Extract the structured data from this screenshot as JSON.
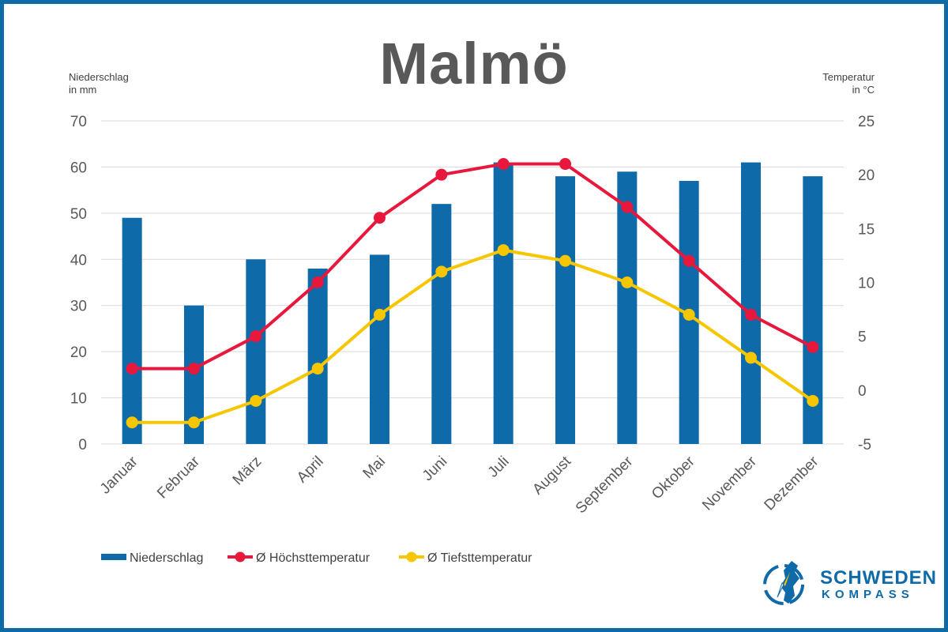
{
  "chart_data": {
    "type": "bar-line-combo",
    "title": "Malmö",
    "categories": [
      "Januar",
      "Februar",
      "März",
      "April",
      "Mai",
      "Juni",
      "Juli",
      "August",
      "September",
      "Oktober",
      "November",
      "Dezember"
    ],
    "series": [
      {
        "name": "Niederschlag",
        "type": "bar",
        "axis": "left",
        "color": "#0e6aa8",
        "values": [
          49,
          30,
          40,
          38,
          41,
          52,
          61,
          58,
          59,
          57,
          61,
          58
        ]
      },
      {
        "name": "Ø Höchsttemperatur",
        "type": "line",
        "axis": "right",
        "color": "#e8173c",
        "values": [
          2,
          2,
          5,
          10,
          16,
          20,
          21,
          21,
          17,
          12,
          7,
          4
        ]
      },
      {
        "name": "Ø Tiefsttemperatur",
        "type": "line",
        "axis": "right",
        "color": "#f6c600",
        "values": [
          -3,
          -3,
          -1,
          2,
          7,
          11,
          13,
          12,
          10,
          7,
          3,
          -1
        ]
      }
    ],
    "y_left": {
      "label_line1": "Niederschlag",
      "label_line2": "in mm",
      "ylim": [
        0,
        70
      ],
      "ticks": [
        0,
        10,
        20,
        30,
        40,
        50,
        60,
        70
      ]
    },
    "y_right": {
      "label_line1": "Temperatur",
      "label_line2": "in °C",
      "ylim": [
        -5,
        25
      ],
      "ticks": [
        -5,
        0,
        5,
        10,
        15,
        20,
        25
      ]
    },
    "grid": true,
    "legend_position": "bottom-left"
  },
  "logo": {
    "word1": "SCHWEDEN",
    "word2": "KOMPASS"
  },
  "colors": {
    "frame": "#0e6aa8",
    "grid": "#d9d9d9",
    "text": "#595959"
  }
}
